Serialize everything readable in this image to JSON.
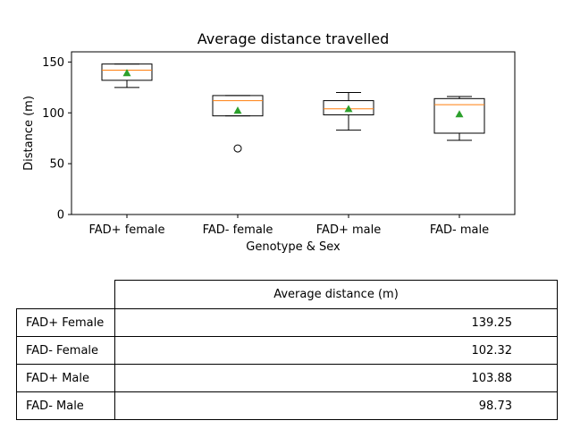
{
  "chart_data": {
    "type": "box",
    "title": "Average distance travelled",
    "xlabel": "Genotype & Sex",
    "ylabel": "Distance (m)",
    "ylim": [
      0,
      160
    ],
    "yticks": [
      0,
      50,
      100,
      150
    ],
    "categories": [
      "FAD+ female",
      "FAD- female",
      "FAD+ male",
      "FAD- male"
    ],
    "boxes": [
      {
        "q1": 132,
        "median": 142,
        "q3": 148,
        "whisker_low": 125,
        "whisker_high": 148,
        "mean": 139.25,
        "outliers": []
      },
      {
        "q1": 97,
        "median": 112,
        "q3": 117,
        "whisker_low": 97,
        "whisker_high": 117,
        "mean": 102.32,
        "outliers": [
          65
        ]
      },
      {
        "q1": 98,
        "median": 104,
        "q3": 112,
        "whisker_low": 83,
        "whisker_high": 120,
        "mean": 103.88,
        "outliers": []
      },
      {
        "q1": 80,
        "median": 108,
        "q3": 114,
        "whisker_low": 73,
        "whisker_high": 116,
        "mean": 98.73,
        "outliers": []
      }
    ],
    "colors": {
      "box": "#000000",
      "median": "#ff7f0e",
      "mean": "#2ca02c"
    }
  },
  "table": {
    "header": "Average distance (m)",
    "rows": [
      {
        "label": "FAD+ Female",
        "value": "139.25"
      },
      {
        "label": "FAD- Female",
        "value": "102.32"
      },
      {
        "label": "FAD+ Male",
        "value": "103.88"
      },
      {
        "label": "FAD- Male",
        "value": "98.73"
      }
    ]
  }
}
